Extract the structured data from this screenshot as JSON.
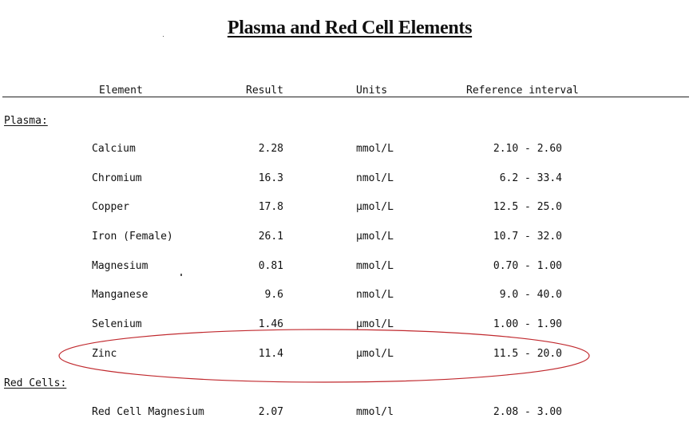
{
  "title": "Plasma and Red Cell Elements",
  "headers": {
    "element": "Element",
    "result": "Result",
    "units": "Units",
    "reference": "Reference interval"
  },
  "sections": [
    {
      "label": "Plasma:",
      "rows": [
        {
          "element": "Calcium",
          "result": "2.28",
          "units": "mmol/L",
          "reference": "2.10 - 2.60"
        },
        {
          "element": "Chromium",
          "result": "16.3",
          "units": "nmol/L",
          "reference": "6.2 - 33.4"
        },
        {
          "element": "Copper",
          "result": "17.8",
          "units": "µmol/L",
          "reference": "12.5 - 25.0"
        },
        {
          "element": "Iron (Female)",
          "result": "26.1",
          "units": "µmol/L",
          "reference": "10.7 - 32.0"
        },
        {
          "element": "Magnesium",
          "result": "0.81",
          "units": "mmol/L",
          "reference": "0.70 - 1.00"
        },
        {
          "element": "Manganese",
          "result": "9.6",
          "units": "nmol/L",
          "reference": "9.0 - 40.0"
        },
        {
          "element": "Selenium",
          "result": "1.46",
          "units": "µmol/L",
          "reference": "1.00 - 1.90"
        },
        {
          "element": "Zinc",
          "result": "11.4",
          "units": "µmol/L",
          "reference": "11.5 - 20.0"
        }
      ]
    },
    {
      "label": "Red Cells:",
      "rows": [
        {
          "element": "Red Cell Magnesium",
          "result": "2.07",
          "units": "mmol/l",
          "reference": "2.08 - 3.00"
        }
      ]
    }
  ],
  "highlight": {
    "color": "#c0282d",
    "row": "Zinc"
  }
}
